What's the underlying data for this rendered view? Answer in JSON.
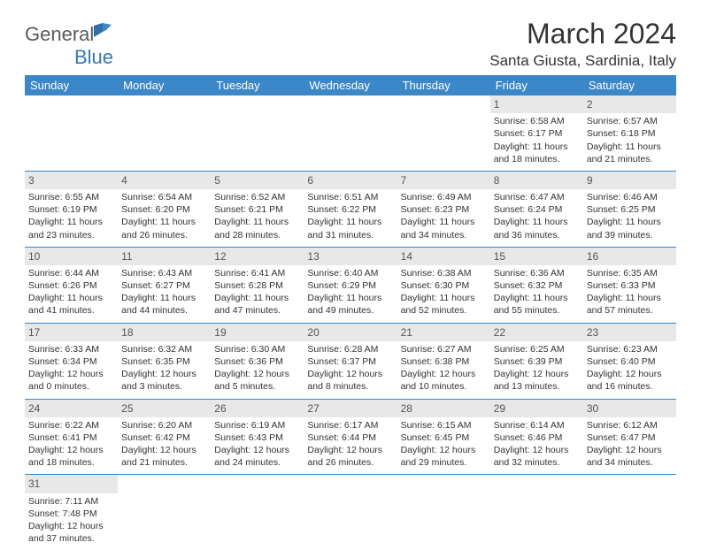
{
  "brand": {
    "part1": "General",
    "part2": "Blue"
  },
  "title": "March 2024",
  "location": "Santa Giusta, Sardinia, Italy",
  "colors": {
    "header_bg": "#3b87c8",
    "header_text": "#ffffff",
    "daynum_bg": "#e8e8e8",
    "text": "#333333",
    "brand_gray": "#5a5a5a",
    "brand_blue": "#337ab7"
  },
  "weekdays": [
    "Sunday",
    "Monday",
    "Tuesday",
    "Wednesday",
    "Thursday",
    "Friday",
    "Saturday"
  ],
  "weeks": [
    [
      null,
      null,
      null,
      null,
      null,
      {
        "n": "1",
        "sr": "Sunrise: 6:58 AM",
        "ss": "Sunset: 6:17 PM",
        "d1": "Daylight: 11 hours",
        "d2": "and 18 minutes."
      },
      {
        "n": "2",
        "sr": "Sunrise: 6:57 AM",
        "ss": "Sunset: 6:18 PM",
        "d1": "Daylight: 11 hours",
        "d2": "and 21 minutes."
      }
    ],
    [
      {
        "n": "3",
        "sr": "Sunrise: 6:55 AM",
        "ss": "Sunset: 6:19 PM",
        "d1": "Daylight: 11 hours",
        "d2": "and 23 minutes."
      },
      {
        "n": "4",
        "sr": "Sunrise: 6:54 AM",
        "ss": "Sunset: 6:20 PM",
        "d1": "Daylight: 11 hours",
        "d2": "and 26 minutes."
      },
      {
        "n": "5",
        "sr": "Sunrise: 6:52 AM",
        "ss": "Sunset: 6:21 PM",
        "d1": "Daylight: 11 hours",
        "d2": "and 28 minutes."
      },
      {
        "n": "6",
        "sr": "Sunrise: 6:51 AM",
        "ss": "Sunset: 6:22 PM",
        "d1": "Daylight: 11 hours",
        "d2": "and 31 minutes."
      },
      {
        "n": "7",
        "sr": "Sunrise: 6:49 AM",
        "ss": "Sunset: 6:23 PM",
        "d1": "Daylight: 11 hours",
        "d2": "and 34 minutes."
      },
      {
        "n": "8",
        "sr": "Sunrise: 6:47 AM",
        "ss": "Sunset: 6:24 PM",
        "d1": "Daylight: 11 hours",
        "d2": "and 36 minutes."
      },
      {
        "n": "9",
        "sr": "Sunrise: 6:46 AM",
        "ss": "Sunset: 6:25 PM",
        "d1": "Daylight: 11 hours",
        "d2": "and 39 minutes."
      }
    ],
    [
      {
        "n": "10",
        "sr": "Sunrise: 6:44 AM",
        "ss": "Sunset: 6:26 PM",
        "d1": "Daylight: 11 hours",
        "d2": "and 41 minutes."
      },
      {
        "n": "11",
        "sr": "Sunrise: 6:43 AM",
        "ss": "Sunset: 6:27 PM",
        "d1": "Daylight: 11 hours",
        "d2": "and 44 minutes."
      },
      {
        "n": "12",
        "sr": "Sunrise: 6:41 AM",
        "ss": "Sunset: 6:28 PM",
        "d1": "Daylight: 11 hours",
        "d2": "and 47 minutes."
      },
      {
        "n": "13",
        "sr": "Sunrise: 6:40 AM",
        "ss": "Sunset: 6:29 PM",
        "d1": "Daylight: 11 hours",
        "d2": "and 49 minutes."
      },
      {
        "n": "14",
        "sr": "Sunrise: 6:38 AM",
        "ss": "Sunset: 6:30 PM",
        "d1": "Daylight: 11 hours",
        "d2": "and 52 minutes."
      },
      {
        "n": "15",
        "sr": "Sunrise: 6:36 AM",
        "ss": "Sunset: 6:32 PM",
        "d1": "Daylight: 11 hours",
        "d2": "and 55 minutes."
      },
      {
        "n": "16",
        "sr": "Sunrise: 6:35 AM",
        "ss": "Sunset: 6:33 PM",
        "d1": "Daylight: 11 hours",
        "d2": "and 57 minutes."
      }
    ],
    [
      {
        "n": "17",
        "sr": "Sunrise: 6:33 AM",
        "ss": "Sunset: 6:34 PM",
        "d1": "Daylight: 12 hours",
        "d2": "and 0 minutes."
      },
      {
        "n": "18",
        "sr": "Sunrise: 6:32 AM",
        "ss": "Sunset: 6:35 PM",
        "d1": "Daylight: 12 hours",
        "d2": "and 3 minutes."
      },
      {
        "n": "19",
        "sr": "Sunrise: 6:30 AM",
        "ss": "Sunset: 6:36 PM",
        "d1": "Daylight: 12 hours",
        "d2": "and 5 minutes."
      },
      {
        "n": "20",
        "sr": "Sunrise: 6:28 AM",
        "ss": "Sunset: 6:37 PM",
        "d1": "Daylight: 12 hours",
        "d2": "and 8 minutes."
      },
      {
        "n": "21",
        "sr": "Sunrise: 6:27 AM",
        "ss": "Sunset: 6:38 PM",
        "d1": "Daylight: 12 hours",
        "d2": "and 10 minutes."
      },
      {
        "n": "22",
        "sr": "Sunrise: 6:25 AM",
        "ss": "Sunset: 6:39 PM",
        "d1": "Daylight: 12 hours",
        "d2": "and 13 minutes."
      },
      {
        "n": "23",
        "sr": "Sunrise: 6:23 AM",
        "ss": "Sunset: 6:40 PM",
        "d1": "Daylight: 12 hours",
        "d2": "and 16 minutes."
      }
    ],
    [
      {
        "n": "24",
        "sr": "Sunrise: 6:22 AM",
        "ss": "Sunset: 6:41 PM",
        "d1": "Daylight: 12 hours",
        "d2": "and 18 minutes."
      },
      {
        "n": "25",
        "sr": "Sunrise: 6:20 AM",
        "ss": "Sunset: 6:42 PM",
        "d1": "Daylight: 12 hours",
        "d2": "and 21 minutes."
      },
      {
        "n": "26",
        "sr": "Sunrise: 6:19 AM",
        "ss": "Sunset: 6:43 PM",
        "d1": "Daylight: 12 hours",
        "d2": "and 24 minutes."
      },
      {
        "n": "27",
        "sr": "Sunrise: 6:17 AM",
        "ss": "Sunset: 6:44 PM",
        "d1": "Daylight: 12 hours",
        "d2": "and 26 minutes."
      },
      {
        "n": "28",
        "sr": "Sunrise: 6:15 AM",
        "ss": "Sunset: 6:45 PM",
        "d1": "Daylight: 12 hours",
        "d2": "and 29 minutes."
      },
      {
        "n": "29",
        "sr": "Sunrise: 6:14 AM",
        "ss": "Sunset: 6:46 PM",
        "d1": "Daylight: 12 hours",
        "d2": "and 32 minutes."
      },
      {
        "n": "30",
        "sr": "Sunrise: 6:12 AM",
        "ss": "Sunset: 6:47 PM",
        "d1": "Daylight: 12 hours",
        "d2": "and 34 minutes."
      }
    ],
    [
      {
        "n": "31",
        "sr": "Sunrise: 7:11 AM",
        "ss": "Sunset: 7:48 PM",
        "d1": "Daylight: 12 hours",
        "d2": "and 37 minutes."
      },
      null,
      null,
      null,
      null,
      null,
      null
    ]
  ]
}
